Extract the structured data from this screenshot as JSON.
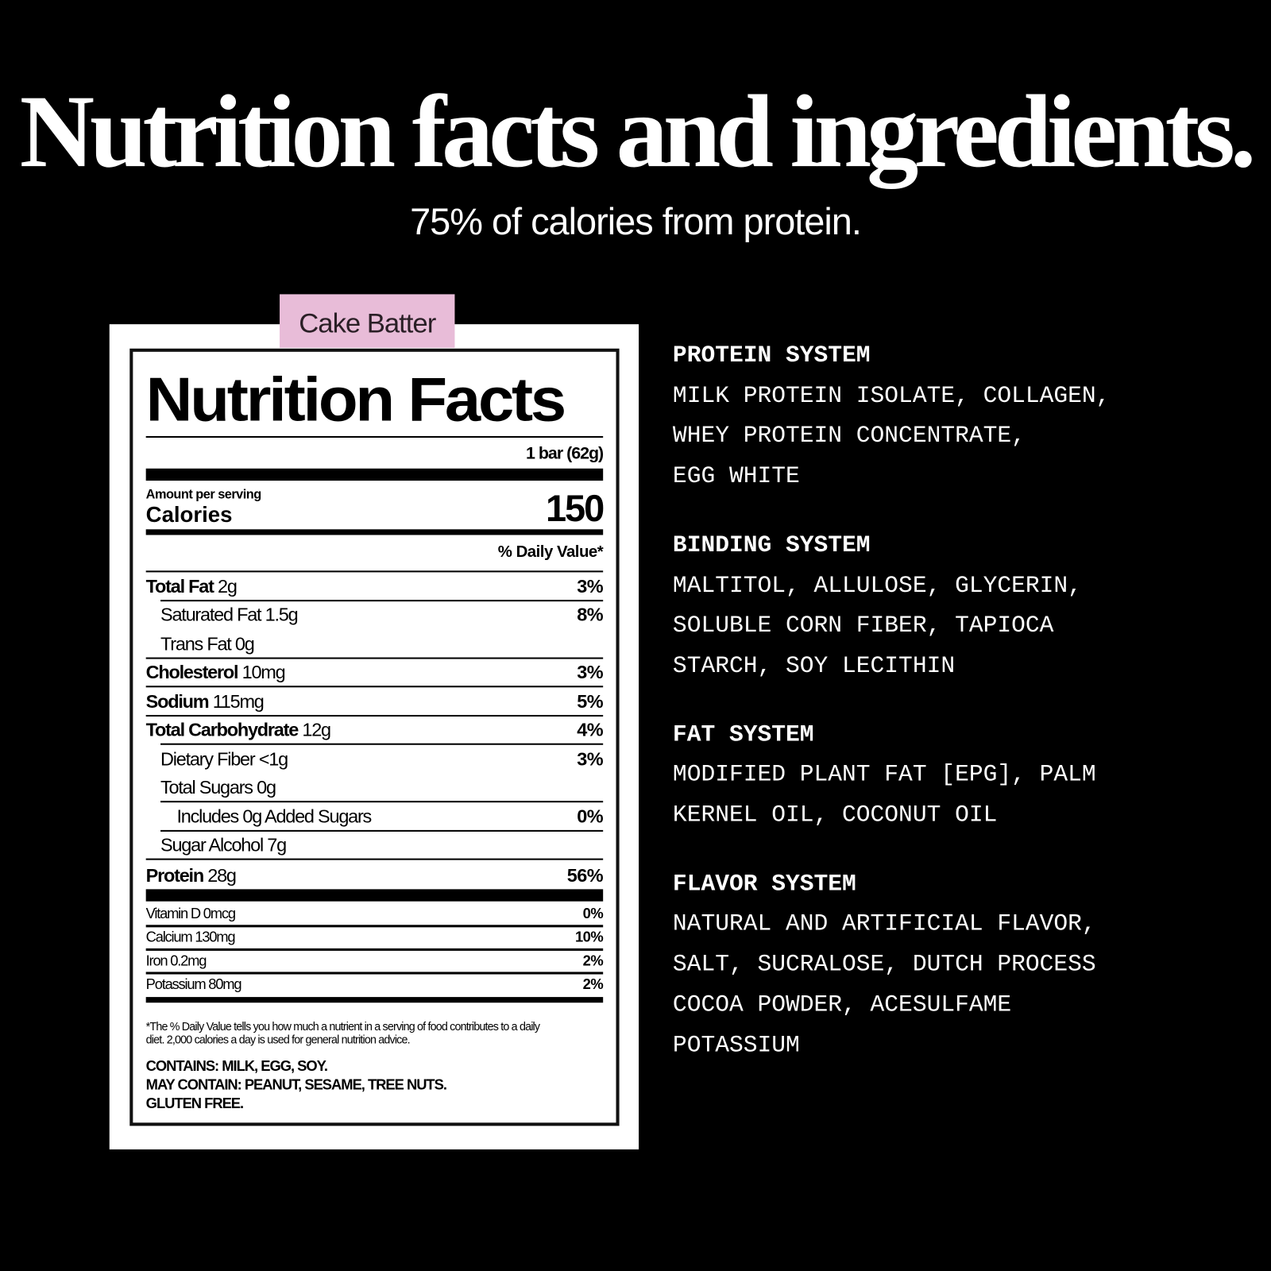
{
  "header": {
    "title": "Nutrition facts and ingredients.",
    "subtitle": "75% of calories from protein."
  },
  "flavor_tab": {
    "label": "Cake Batter",
    "color": "#e8bcd8"
  },
  "label": {
    "heading": "Nutrition Facts",
    "serving_size": "1 bar (62g)",
    "amount_per_serving": "Amount per serving",
    "calories_label": "Calories",
    "calories_value": "150",
    "daily_value_header": "% Daily Value*",
    "nutrients": [
      {
        "name": "Total Fat",
        "amount": "2g",
        "dv": "3%"
      },
      {
        "name": "Saturated Fat",
        "amount": "1.5g",
        "dv": "8%"
      },
      {
        "name": "Trans Fat",
        "amount": "0g",
        "dv": ""
      },
      {
        "name": "Cholesterol",
        "amount": "10mg",
        "dv": "3%"
      },
      {
        "name": "Sodium",
        "amount": "115mg",
        "dv": "5%"
      },
      {
        "name": "Total Carbohydrate",
        "amount": "12g",
        "dv": "4%"
      },
      {
        "name": "Dietary Fiber",
        "amount": "<1g",
        "dv": "3%"
      },
      {
        "name": "Total Sugars",
        "amount": "0g",
        "dv": ""
      },
      {
        "name": "Includes 0g Added Sugars",
        "amount": "",
        "dv": "0%"
      },
      {
        "name": "Sugar Alcohol",
        "amount": "7g",
        "dv": ""
      },
      {
        "name": "Protein",
        "amount": "28g",
        "dv": "56%"
      }
    ],
    "vitamins": [
      {
        "name": "Vitamin D 0mcg",
        "dv": "0%"
      },
      {
        "name": "Calcium 130mg",
        "dv": "10%"
      },
      {
        "name": "Iron 0.2mg",
        "dv": "2%"
      },
      {
        "name": "Potassium 80mg",
        "dv": "2%"
      }
    ],
    "footnote_1": "*The % Daily Value tells you how much a nutrient in a serving of food contributes to a daily",
    "footnote_2": "diet. 2,000 calories a day is used for general nutrition advice.",
    "contains": "CONTAINS: MILK, EGG, SOY.",
    "may_contain": "MAY CONTAIN: PEANUT, SESAME, TREE NUTS.",
    "gluten": "GLUTEN FREE."
  },
  "ingredients": [
    {
      "heading": "PROTEIN SYSTEM",
      "lines": [
        "MILK PROTEIN ISOLATE, COLLAGEN,",
        "WHEY PROTEIN CONCENTRATE,",
        "EGG WHITE"
      ]
    },
    {
      "heading": "BINDING SYSTEM",
      "lines": [
        "MALTITOL, ALLULOSE, GLYCERIN,",
        "SOLUBLE CORN FIBER, TAPIOCA",
        "STARCH, SOY LECITHIN"
      ]
    },
    {
      "heading": "FAT SYSTEM",
      "lines": [
        "MODIFIED PLANT FAT [EPG], PALM",
        "KERNEL OIL, COCONUT OIL"
      ]
    },
    {
      "heading": "FLAVOR SYSTEM",
      "lines": [
        "NATURAL AND ARTIFICIAL FLAVOR,",
        "SALT, SUCRALOSE, DUTCH PROCESS",
        "COCOA POWDER, ACESULFAME",
        "POTASSIUM"
      ]
    }
  ]
}
